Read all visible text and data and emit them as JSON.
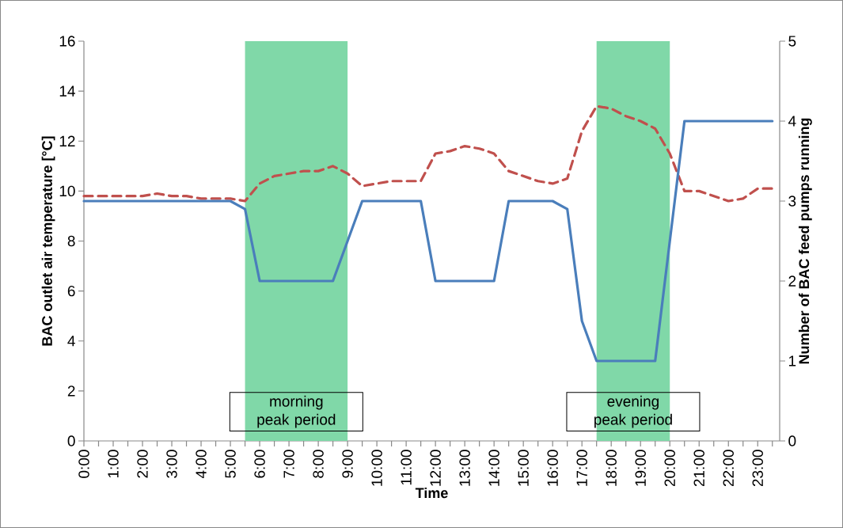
{
  "chart_data": {
    "type": "line",
    "xlabel": "Time",
    "ylabel": "BAC outlet air temperature [°C]",
    "y2label": "Number of BAC feed pumps running",
    "marker": "none",
    "x": [
      0,
      0.5,
      1,
      1.5,
      2,
      2.5,
      3,
      3.5,
      4,
      4.5,
      5,
      5.5,
      6,
      6.5,
      7,
      7.5,
      8,
      8.5,
      9,
      9.5,
      10,
      10.5,
      11,
      11.5,
      12,
      12.5,
      13,
      13.5,
      14,
      14.5,
      15,
      15.5,
      16,
      16.5,
      17,
      17.5,
      18,
      18.5,
      19,
      19.5,
      20,
      20.5,
      21,
      21.5,
      22,
      22.5,
      23,
      23.5
    ],
    "series": [
      {
        "color": "#c0504d",
        "line_style": "dashed",
        "values": [
          9.8,
          9.8,
          9.8,
          9.8,
          9.8,
          9.9,
          9.8,
          9.8,
          9.7,
          9.7,
          9.7,
          9.6,
          10.3,
          10.6,
          10.7,
          10.8,
          10.8,
          11.0,
          10.7,
          10.2,
          10.3,
          10.4,
          10.4,
          10.4,
          11.5,
          11.6,
          11.8,
          11.7,
          11.5,
          10.8,
          10.6,
          10.4,
          10.3,
          10.5,
          12.4,
          13.4,
          13.3,
          13.0,
          12.8,
          12.5,
          11.5,
          10.0,
          10.0,
          9.8,
          9.6,
          9.7,
          10.1,
          10.1
        ]
      },
      {
        "color": "#4a7ebb",
        "line_style": "solid",
        "axis": "y2",
        "values": [
          3,
          3,
          3,
          3,
          3,
          3,
          3,
          3,
          3,
          3,
          3,
          2.9,
          2,
          2,
          2,
          2,
          2,
          2,
          2.5,
          3,
          3,
          3,
          3,
          3,
          2,
          2,
          2,
          2,
          2,
          3,
          3,
          3,
          3,
          2.9,
          1.5,
          1,
          1,
          1,
          1,
          1,
          2.5,
          4,
          4,
          4,
          4,
          4,
          4,
          4
        ]
      }
    ],
    "xlim": [
      0,
      23.75
    ],
    "xticks": [
      {
        "value": 0,
        "label": "0:00"
      },
      {
        "value": 0.5,
        "label": null
      },
      {
        "value": 1,
        "label": "1:00"
      },
      {
        "value": 1.5,
        "label": null
      },
      {
        "value": 2,
        "label": "2:00"
      },
      {
        "value": 2.5,
        "label": null
      },
      {
        "value": 3,
        "label": "3:00"
      },
      {
        "value": 3.5,
        "label": null
      },
      {
        "value": 4,
        "label": "4:00"
      },
      {
        "value": 4.5,
        "label": null
      },
      {
        "value": 5,
        "label": "5:00"
      },
      {
        "value": 5.5,
        "label": null
      },
      {
        "value": 6,
        "label": "6:00"
      },
      {
        "value": 6.5,
        "label": null
      },
      {
        "value": 7,
        "label": "7:00"
      },
      {
        "value": 7.5,
        "label": null
      },
      {
        "value": 8,
        "label": "8:00"
      },
      {
        "value": 8.5,
        "label": null
      },
      {
        "value": 9,
        "label": "9:00"
      },
      {
        "value": 9.5,
        "label": null
      },
      {
        "value": 10,
        "label": "10:00"
      },
      {
        "value": 10.5,
        "label": null
      },
      {
        "value": 11,
        "label": "11:00"
      },
      {
        "value": 11.5,
        "label": null
      },
      {
        "value": 12,
        "label": "12:00"
      },
      {
        "value": 12.5,
        "label": null
      },
      {
        "value": 13,
        "label": "13:00"
      },
      {
        "value": 13.5,
        "label": null
      },
      {
        "value": 14,
        "label": "14:00"
      },
      {
        "value": 14.5,
        "label": null
      },
      {
        "value": 15,
        "label": "15:00"
      },
      {
        "value": 15.5,
        "label": null
      },
      {
        "value": 16,
        "label": "16:00"
      },
      {
        "value": 16.5,
        "label": null
      },
      {
        "value": 17,
        "label": "17:00"
      },
      {
        "value": 17.5,
        "label": null
      },
      {
        "value": 18,
        "label": "18:00"
      },
      {
        "value": 18.5,
        "label": null
      },
      {
        "value": 19,
        "label": "19:00"
      },
      {
        "value": 19.5,
        "label": null
      },
      {
        "value": 20,
        "label": "20:00"
      },
      {
        "value": 20.5,
        "label": null
      },
      {
        "value": 21,
        "label": "21:00"
      },
      {
        "value": 21.5,
        "label": null
      },
      {
        "value": 22,
        "label": "22:00"
      },
      {
        "value": 22.5,
        "label": null
      },
      {
        "value": 23,
        "label": "23:00"
      },
      {
        "value": 23.5,
        "label": null
      }
    ],
    "ylim": [
      0,
      16
    ],
    "yticks": [
      0,
      2,
      4,
      6,
      8,
      10,
      12,
      14,
      16
    ],
    "y2lim": [
      0,
      5
    ],
    "y2ticks": [
      0,
      1,
      2,
      3,
      4,
      5
    ],
    "bands": [
      {
        "axis": "x",
        "from": 5.5,
        "to": 9,
        "label": "morning peak period",
        "color": "#80d8a8"
      },
      {
        "axis": "x",
        "from": 17.5,
        "to": 20,
        "label": "evening peak period",
        "color": "#80d8a8"
      }
    ]
  }
}
